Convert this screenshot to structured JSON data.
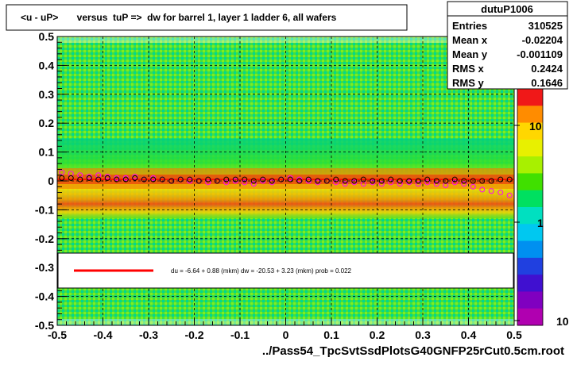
{
  "chart_data": {
    "type": "heatmap",
    "title": "<u - uP>       versus  tuP =>  dw for barrel 1, layer 1 ladder 6, all wafers",
    "xlabel": "../Pass54_TpcSvtSsdPlotsG40GNFP25rCut0.5cm.root",
    "ylabel": "",
    "xlim": [
      -0.5,
      0.5
    ],
    "ylim": [
      -0.5,
      0.5
    ],
    "x_ticks": [
      "-0.5",
      "-0.4",
      "-0.3",
      "-0.2",
      "-0.1",
      "0",
      "0.1",
      "0.2",
      "0.3",
      "0.4",
      "0.5"
    ],
    "y_ticks": [
      "0.5",
      "0.4",
      "0.3",
      "0.2",
      "0.1",
      "0",
      "-0.1",
      "-0.2",
      "-0.3",
      "-0.4",
      "-0.5"
    ],
    "grid": true,
    "colorbar": {
      "scale": "log",
      "tick_labels": [
        "10",
        "1",
        "10"
      ],
      "colors": [
        "#f01818",
        "#ff8c00",
        "#ffd700",
        "#e8f000",
        "#a8f000",
        "#40e000",
        "#00e060",
        "#00e0c0",
        "#00c8f0",
        "#0090f0",
        "#2040e0",
        "#4010d0",
        "#8000c0",
        "#b000b0"
      ]
    },
    "profile_points": {
      "x": [
        -0.49,
        -0.47,
        -0.45,
        -0.43,
        -0.41,
        -0.39,
        -0.37,
        -0.35,
        -0.33,
        -0.31,
        -0.29,
        -0.27,
        -0.25,
        -0.23,
        -0.21,
        -0.19,
        -0.17,
        -0.15,
        -0.13,
        -0.11,
        -0.09,
        -0.07,
        -0.05,
        -0.03,
        -0.01,
        0.01,
        0.03,
        0.05,
        0.07,
        0.09,
        0.11,
        0.13,
        0.15,
        0.17,
        0.19,
        0.21,
        0.23,
        0.25,
        0.27,
        0.29,
        0.31,
        0.33,
        0.35,
        0.37,
        0.39,
        0.41,
        0.43,
        0.45,
        0.47,
        0.49
      ],
      "black_y": [
        0.01,
        0.01,
        0.005,
        0.01,
        0.005,
        0.01,
        0.005,
        0.005,
        0.01,
        0.005,
        0.005,
        0.005,
        0.0,
        0.005,
        0.005,
        0.0,
        0.005,
        0.0,
        0.005,
        0.005,
        0.005,
        0.0,
        0.005,
        0.0,
        0.005,
        0.005,
        0.0,
        0.005,
        0.0,
        0.0,
        0.005,
        0.0,
        0.0,
        0.005,
        0.0,
        0.0,
        0.005,
        0.0,
        0.0,
        0.0,
        0.005,
        0.0,
        0.0,
        0.005,
        0.0,
        0.0,
        0.0,
        0.0,
        0.005,
        0.005
      ],
      "magenta_y": [
        0.03,
        0.025,
        0.02,
        0.015,
        0.02,
        0.015,
        0.01,
        0.01,
        0.015,
        0.005,
        0.01,
        0.005,
        0.0,
        0.005,
        0.0,
        0.0,
        -0.005,
        0.0,
        -0.005,
        0.0,
        -0.005,
        -0.01,
        0.0,
        -0.005,
        0.005,
        0.01,
        0.005,
        0.0,
        -0.005,
        0.0,
        -0.005,
        -0.01,
        -0.005,
        -0.01,
        -0.005,
        -0.01,
        -0.005,
        -0.01,
        -0.005,
        -0.01,
        -0.005,
        -0.01,
        -0.015,
        -0.005,
        -0.01,
        -0.02,
        -0.03,
        -0.035,
        -0.04,
        -0.05
      ]
    },
    "fit_line_y": 0.005,
    "legend": {
      "placement": "lower-center",
      "entry": "du =    -6.64 +   0.88 (mkm) dw =   -20.53 +   3.23 (mkm) prob = 0.022",
      "line_color": "#ff0000"
    },
    "stats": {
      "name": "dutuP1006",
      "rows": [
        {
          "label": "Entries",
          "value": "310525"
        },
        {
          "label": "Mean x",
          "value": "-0.02204"
        },
        {
          "label": "Mean y",
          "value": "-0.001109"
        },
        {
          "label": "RMS x",
          "value": "0.2424"
        },
        {
          "label": "RMS y",
          "value": "0.1646"
        }
      ]
    }
  }
}
